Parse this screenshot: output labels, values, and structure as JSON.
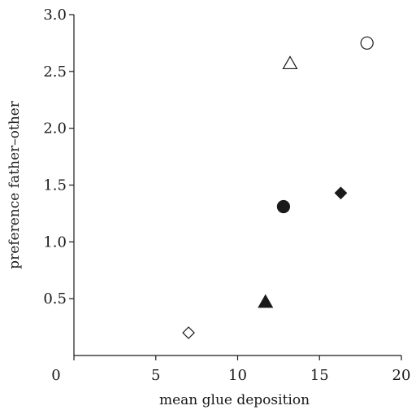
{
  "chart_data": {
    "type": "scatter",
    "title": "",
    "xlabel": "mean glue deposition",
    "ylabel": "preference father–other",
    "xlim": [
      0,
      20
    ],
    "ylim": [
      0,
      3.0
    ],
    "x_ticks": [
      0,
      5,
      10,
      15,
      20
    ],
    "x_tick_labels": [
      "0",
      "5",
      "10",
      "15",
      "20"
    ],
    "y_ticks": [
      0.5,
      1.0,
      1.5,
      2.0,
      2.5,
      3.0
    ],
    "y_tick_labels": [
      "0.5",
      "1.0",
      "1.5",
      "2.0",
      "2.5",
      "3.0"
    ],
    "grid": false,
    "legend": "none",
    "points": [
      {
        "x": 7.0,
        "y": 0.2,
        "marker": "diamond",
        "filled": false
      },
      {
        "x": 11.7,
        "y": 0.47,
        "marker": "triangle",
        "filled": true
      },
      {
        "x": 12.8,
        "y": 1.31,
        "marker": "circle",
        "filled": true
      },
      {
        "x": 13.2,
        "y": 2.57,
        "marker": "triangle",
        "filled": false
      },
      {
        "x": 16.3,
        "y": 1.43,
        "marker": "diamond",
        "filled": true
      },
      {
        "x": 17.9,
        "y": 2.75,
        "marker": "circle",
        "filled": false
      }
    ]
  }
}
